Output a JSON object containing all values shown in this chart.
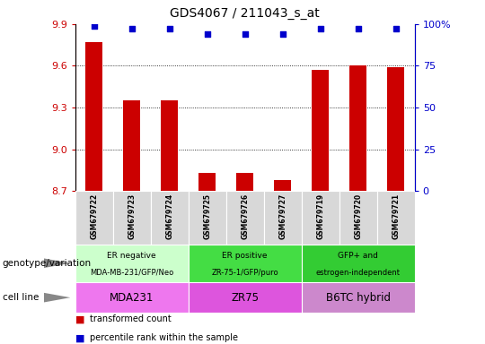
{
  "title": "GDS4067 / 211043_s_at",
  "samples": [
    "GSM679722",
    "GSM679723",
    "GSM679724",
    "GSM679725",
    "GSM679726",
    "GSM679727",
    "GSM679719",
    "GSM679720",
    "GSM679721"
  ],
  "transformed_counts": [
    9.77,
    9.35,
    9.35,
    8.83,
    8.83,
    8.78,
    9.57,
    9.6,
    9.59
  ],
  "percentile_ranks": [
    99,
    97,
    97,
    94,
    94,
    94,
    97,
    97,
    97
  ],
  "ylim": [
    8.7,
    9.9
  ],
  "yticks": [
    8.7,
    9.0,
    9.3,
    9.6,
    9.9
  ],
  "right_ylim": [
    0,
    100
  ],
  "right_yticks": [
    0,
    25,
    50,
    75,
    100
  ],
  "bar_color": "#cc0000",
  "dot_color": "#0000cc",
  "groups": [
    {
      "label_top": "ER negative",
      "label_bot": "MDA-MB-231/GFP/Neo",
      "cell_line": "MDA231",
      "start": 0,
      "end": 3,
      "geno_color": "#ccffcc",
      "cell_color": "#ee77ee"
    },
    {
      "label_top": "ER positive",
      "label_bot": "ZR-75-1/GFP/puro",
      "cell_line": "ZR75",
      "start": 3,
      "end": 6,
      "geno_color": "#44dd44",
      "cell_color": "#dd55dd"
    },
    {
      "label_top": "GFP+ and",
      "label_bot": "estrogen-independent",
      "cell_line": "B6TC hybrid",
      "start": 6,
      "end": 9,
      "geno_color": "#33cc33",
      "cell_color": "#cc88cc"
    }
  ],
  "legend_bar_label": "transformed count",
  "legend_dot_label": "percentile rank within the sample",
  "genotype_label": "genotype/variation",
  "cell_line_label": "cell line",
  "sample_box_color": "#d8d8d8",
  "right_ytick_labels": [
    "0",
    "25",
    "50",
    "75",
    "100%"
  ]
}
